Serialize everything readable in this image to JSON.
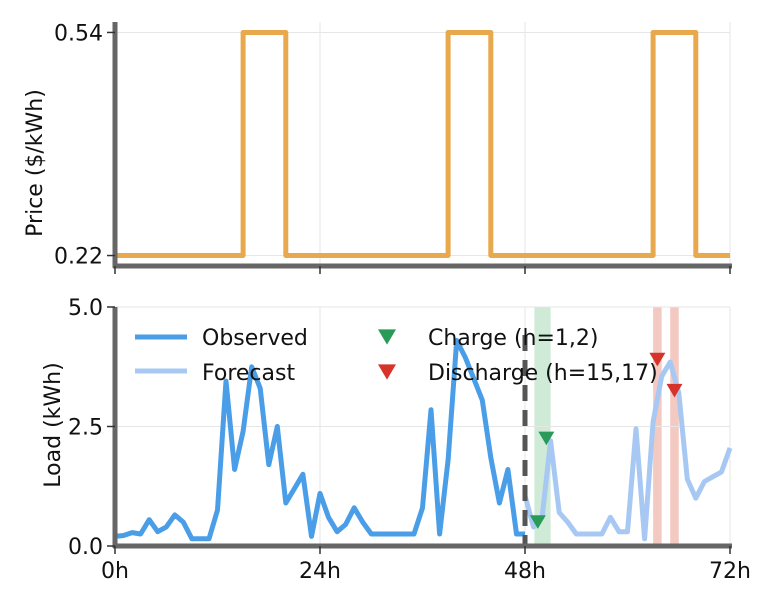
{
  "colors": {
    "price": "#e8a84c",
    "observed": "#4a9ee8",
    "forecast": "#a8c8f4",
    "charge": "#2a9a58",
    "discharge": "#d6342b",
    "charge_band": "#cfead7",
    "discharge_band": "#f4c9c2",
    "axis": "#666666",
    "grid": "#e6e6e6",
    "now_line": "#555555"
  },
  "chart_data": [
    {
      "type": "line",
      "name": "price-panel",
      "ylabel": "Price ($/kWh)",
      "xlim": [
        0,
        72
      ],
      "ylim": [
        0.205,
        0.555
      ],
      "yticks": [
        0.22,
        0.54
      ],
      "ytick_labels": [
        "0.22",
        "0.54"
      ],
      "xticks": [
        0,
        24,
        48,
        72
      ],
      "grid": true,
      "series": [
        {
          "x": [
            0,
            15,
            15,
            20,
            20,
            39,
            39,
            44,
            44,
            63,
            63,
            68,
            68,
            72
          ],
          "y": [
            0.22,
            0.22,
            0.54,
            0.54,
            0.22,
            0.22,
            0.54,
            0.54,
            0.22,
            0.22,
            0.54,
            0.54,
            0.22,
            0.22
          ]
        }
      ]
    },
    {
      "type": "line",
      "name": "load-panel",
      "ylabel": "Load (kWh)",
      "xlim": [
        0,
        72
      ],
      "ylim": [
        0,
        5
      ],
      "yticks": [
        0,
        2.5,
        5
      ],
      "ytick_labels": [
        "0.0",
        "2.5",
        "5.0"
      ],
      "xticks": [
        0,
        24,
        48,
        72
      ],
      "xtick_labels": [
        "0h",
        "24h",
        "48h",
        "72h"
      ],
      "grid": true,
      "now_line_x": 48,
      "legend_position": "top",
      "legend": {
        "observed": "Observed",
        "forecast": "Forecast",
        "charge": "Charge (h=1,2)",
        "discharge": "Discharge (h=15,17)"
      },
      "charge_bands": [
        [
          49.1,
          51.0
        ]
      ],
      "discharge_bands": [
        [
          63.0,
          64.0
        ],
        [
          65.0,
          66.0
        ]
      ],
      "series": [
        {
          "name": "Observed",
          "x": [
            0,
            1,
            2,
            3,
            4,
            5,
            6,
            7,
            8,
            9,
            10,
            11,
            12,
            13,
            14,
            15,
            16,
            17,
            18,
            19,
            20,
            21,
            22,
            23,
            24,
            25,
            26,
            27,
            28,
            29,
            30,
            31,
            32,
            33,
            34,
            35,
            36,
            37,
            38,
            39,
            40,
            41,
            42,
            43,
            44,
            45,
            46,
            47,
            48
          ],
          "y": [
            0.2,
            0.22,
            0.28,
            0.25,
            0.55,
            0.3,
            0.4,
            0.65,
            0.5,
            0.15,
            0.15,
            0.15,
            0.75,
            3.45,
            1.6,
            2.4,
            3.75,
            3.3,
            1.7,
            2.5,
            0.9,
            1.2,
            1.5,
            0.2,
            1.1,
            0.6,
            0.3,
            0.45,
            0.8,
            0.5,
            0.25,
            0.25,
            0.25,
            0.25,
            0.25,
            0.25,
            0.8,
            2.85,
            0.25,
            1.8,
            4.3,
            3.95,
            3.5,
            3.05,
            1.85,
            0.9,
            1.6,
            0.25,
            0.25
          ]
        },
        {
          "name": "Forecast",
          "x": [
            48,
            49,
            50,
            51,
            52,
            53,
            54,
            55,
            56,
            57,
            58,
            59,
            60,
            61,
            62,
            63,
            64,
            65,
            66,
            67,
            68,
            69,
            70,
            71,
            72
          ],
          "y": [
            1.05,
            0.4,
            0.6,
            2.2,
            0.7,
            0.5,
            0.25,
            0.25,
            0.25,
            0.25,
            0.6,
            0.3,
            0.3,
            2.45,
            0.15,
            2.6,
            3.55,
            3.85,
            3.2,
            1.4,
            1.0,
            1.35,
            1.45,
            1.55,
            2.05
          ]
        }
      ],
      "markers": {
        "charge": [
          {
            "x": 49.5,
            "y": 0.5
          },
          {
            "x": 50.5,
            "y": 2.25
          }
        ],
        "discharge": [
          {
            "x": 63.5,
            "y": 3.9
          },
          {
            "x": 65.5,
            "y": 3.25
          }
        ]
      }
    }
  ]
}
